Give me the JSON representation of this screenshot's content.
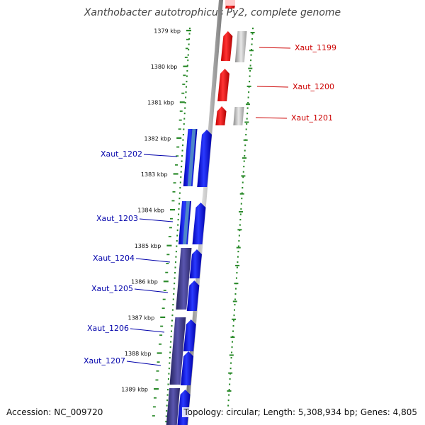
{
  "header": {
    "title": "Xanthobacter autotrophicus Py2, complete genome"
  },
  "footer": {
    "accession": "Accession: NC_009720",
    "summary": "Topology: circular; Length: 5,308,934 bp; Genes: 4,805"
  },
  "scale": {
    "ticks": [
      "1379 kbp",
      "1380 kbp",
      "1381 kbp",
      "1382 kbp",
      "1383 kbp",
      "1384 kbp",
      "1385 kbp",
      "1386 kbp",
      "1387 kbp",
      "1388 kbp",
      "1389 kbp"
    ]
  },
  "genes": [
    {
      "name": "Xaut_1199",
      "strand": "reverse"
    },
    {
      "name": "Xaut_1200",
      "strand": "reverse"
    },
    {
      "name": "Xaut_1201",
      "strand": "reverse"
    },
    {
      "name": "Xaut_1202",
      "strand": "forward"
    },
    {
      "name": "Xaut_1203",
      "strand": "forward"
    },
    {
      "name": "Xaut_1204",
      "strand": "forward"
    },
    {
      "name": "Xaut_1205",
      "strand": "forward"
    },
    {
      "name": "Xaut_1206",
      "strand": "forward"
    },
    {
      "name": "Xaut_1207",
      "strand": "forward"
    }
  ],
  "colors": {
    "reverse_strand": "#ff0000",
    "forward_strand": "#0000ff",
    "label_reverse": "#cc0000",
    "label_forward": "#0000aa",
    "gc_skew": "#aaaaaa",
    "gc_content": "#3d3a8c",
    "axis_ticks": "#2a8a2a",
    "backbone": "#888888"
  }
}
